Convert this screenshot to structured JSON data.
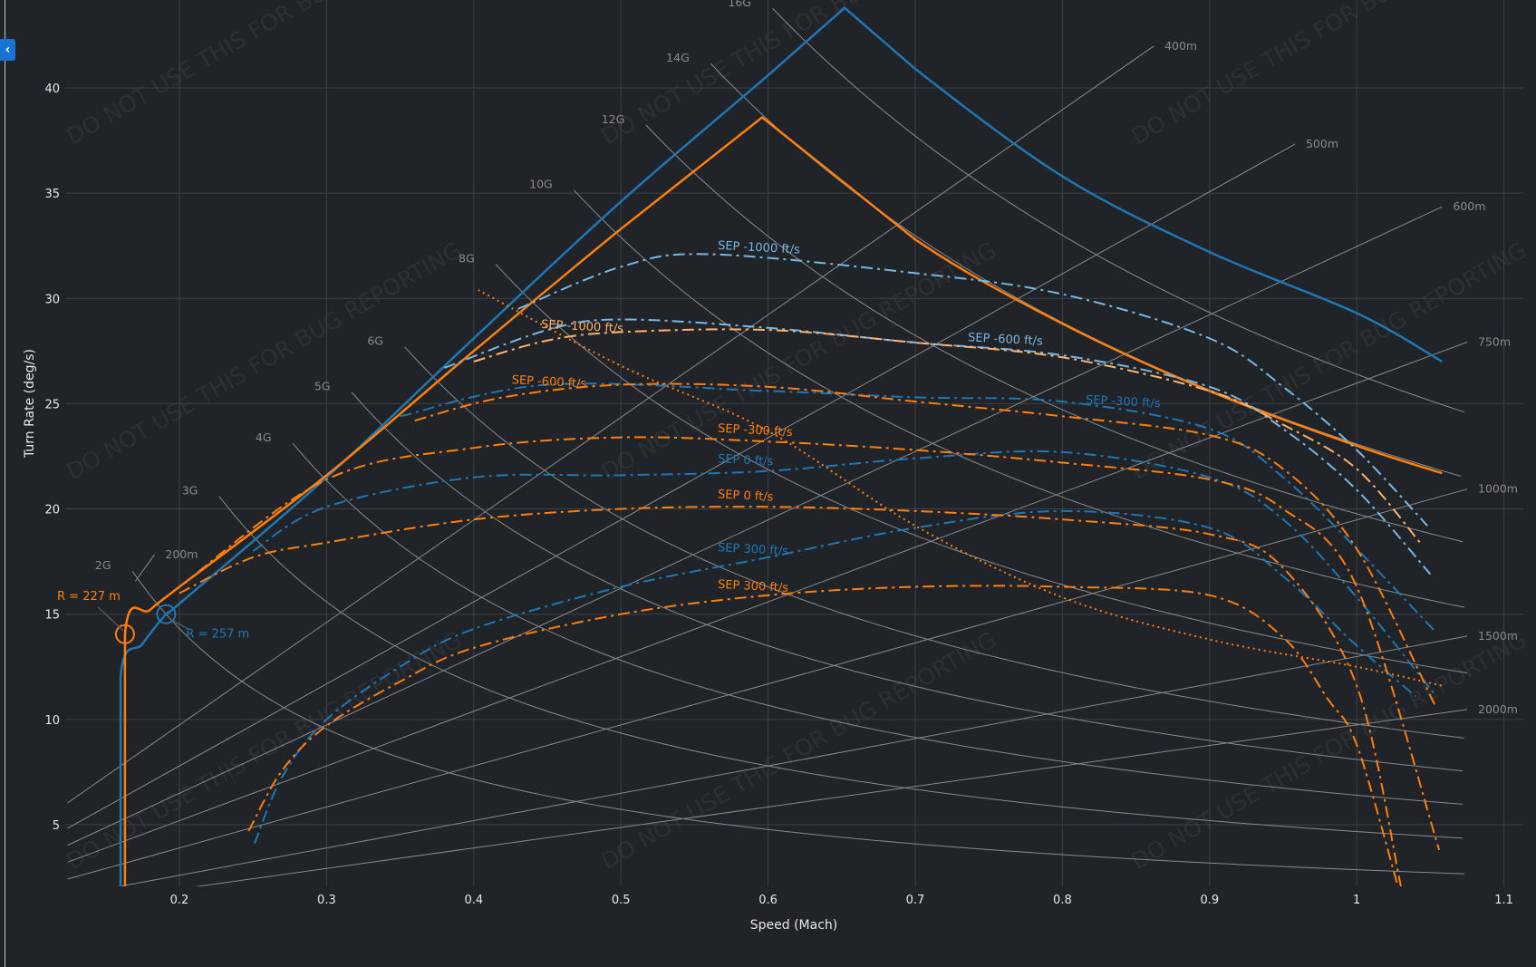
{
  "ui": {
    "collapse_button_icon": "chevron-left-icon",
    "collapse_button_glyph": "‹"
  },
  "watermark": "DO NOT USE THIS FOR BUG REPORTING",
  "colors": {
    "background": "#202328",
    "blue": "#1f77b4",
    "orange": "#ff7f0e",
    "light_blue": "#7ab6e0",
    "light_orange": "#ffb26b",
    "grid": "#3c3f44",
    "reference": "#8a8a8a"
  },
  "chart_data": {
    "type": "line",
    "xlabel": "Speed (Mach)",
    "ylabel": "Turn Rate (deg/s)",
    "xlim": [
      0.122,
      1.113
    ],
    "ylim": [
      2.07,
      44.2
    ],
    "grid": true,
    "x_ticks": [
      "0.2",
      "0.3",
      "0.4",
      "0.5",
      "0.6",
      "0.7",
      "0.8",
      "0.9",
      "1",
      "1.1"
    ],
    "y_ticks": [
      "5",
      "10",
      "15",
      "20",
      "25",
      "30",
      "35",
      "40"
    ],
    "g_lines": [
      {
        "label": "2G",
        "n": 2
      },
      {
        "label": "3G",
        "n": 3
      },
      {
        "label": "4G",
        "n": 4
      },
      {
        "label": "5G",
        "n": 5
      },
      {
        "label": "6G",
        "n": 6
      },
      {
        "label": "8G",
        "n": 8
      },
      {
        "label": "10G",
        "n": 10
      },
      {
        "label": "12G",
        "n": 12
      },
      {
        "label": "14G",
        "n": 14
      },
      {
        "label": "16G",
        "n": 16
      }
    ],
    "radius_lines": [
      {
        "label": "200m",
        "r": 200
      },
      {
        "label": "400m",
        "r": 400
      },
      {
        "label": "500m",
        "r": 500
      },
      {
        "label": "600m",
        "r": 600
      },
      {
        "label": "750m",
        "r": 750
      },
      {
        "label": "1000m",
        "r": 1000
      },
      {
        "label": "1500m",
        "r": 1500
      },
      {
        "label": "2000m",
        "r": 2000
      }
    ],
    "series": [
      {
        "id": "blue-envelope",
        "color": "blue",
        "style": "solid",
        "x": [
          0.16,
          0.16,
          0.175,
          0.191,
          0.2,
          0.3,
          0.4,
          0.5,
          0.6,
          0.652,
          0.7,
          0.8,
          0.9,
          1.0,
          1.058
        ],
        "y": [
          2.07,
          12.0,
          13.6,
          15.0,
          15.5,
          21.5,
          28.1,
          34.6,
          40.6,
          43.8,
          40.9,
          35.8,
          32.2,
          29.3,
          27.0
        ]
      },
      {
        "id": "orange-envelope",
        "color": "orange",
        "style": "solid",
        "x": [
          0.163,
          0.163,
          0.18,
          0.2,
          0.3,
          0.4,
          0.5,
          0.596,
          0.7,
          0.8,
          0.9,
          1.0,
          1.058
        ],
        "y": [
          2.07,
          14.05,
          15.2,
          16.3,
          21.6,
          27.5,
          33.3,
          38.6,
          32.8,
          28.8,
          25.6,
          23.0,
          21.7
        ]
      },
      {
        "id": "orange-dotted",
        "color": "orange",
        "style": "dotted",
        "x": [
          0.403,
          0.5,
          0.6,
          0.7,
          0.8,
          0.9,
          1.0,
          1.058
        ],
        "y": [
          30.4,
          26.8,
          23.7,
          19.2,
          15.8,
          13.8,
          12.5,
          11.6
        ]
      },
      {
        "id": "blue-sep-m1000",
        "name": "SEP -1000 ft/s",
        "color": "light_blue",
        "style": "dashdot",
        "x": [
          0.43,
          0.5,
          0.56,
          0.7,
          0.8,
          0.9,
          0.95,
          1.0,
          1.048
        ],
        "y": [
          29.5,
          31.5,
          32.1,
          31.2,
          30.2,
          28.1,
          25.8,
          22.8,
          19.2
        ],
        "label_at": 0.59
      },
      {
        "id": "blue-sep-m600",
        "name": "SEP -600 ft/s",
        "color": "light_blue",
        "style": "dashdot",
        "x": [
          0.38,
          0.45,
          0.5,
          0.6,
          0.7,
          0.8,
          0.9,
          0.95,
          1.0,
          1.05
        ],
        "y": [
          26.7,
          28.5,
          29.0,
          28.6,
          27.9,
          27.3,
          25.8,
          23.8,
          20.9,
          16.9
        ],
        "label_at": 0.6
      },
      {
        "id": "blue-sep-m300",
        "name": "SEP -300 ft/s",
        "color": "blue",
        "style": "dashdot",
        "x": [
          0.35,
          0.45,
          0.6,
          0.7,
          0.8,
          0.9,
          0.95,
          1.0,
          1.053
        ],
        "y": [
          24.4,
          25.9,
          25.6,
          25.3,
          25.1,
          23.8,
          21.5,
          18.1,
          14.2
        ],
        "label_at": 0.6
      },
      {
        "id": "blue-sep-0",
        "name": "SEP 0 ft/s",
        "color": "blue",
        "style": "dashdot",
        "x": [
          0.25,
          0.3,
          0.4,
          0.5,
          0.6,
          0.7,
          0.8,
          0.9,
          0.95,
          1.0,
          1.054
        ],
        "y": [
          18.0,
          20.1,
          21.5,
          21.6,
          21.8,
          22.4,
          22.7,
          21.5,
          19.5,
          15.8,
          11.1
        ],
        "label_at": 0.59
      },
      {
        "id": "blue-sep-300",
        "name": "SEP 300 ft/s",
        "color": "blue",
        "style": "dashdot",
        "x": [
          0.251,
          0.27,
          0.3,
          0.35,
          0.4,
          0.5,
          0.6,
          0.7,
          0.8,
          0.9,
          0.95,
          1.0,
          1.04
        ],
        "y": [
          4.1,
          7.3,
          10.0,
          12.5,
          14.3,
          16.3,
          17.7,
          19.1,
          19.9,
          19.1,
          16.8,
          13.5,
          11.1
        ],
        "label_at": 0.59
      },
      {
        "id": "orange-sep-m1000",
        "name": "SEP -1000 ft/s",
        "color": "light_orange",
        "style": "dashdot",
        "x": [
          0.4,
          0.45,
          0.5,
          0.6,
          0.7,
          0.8,
          0.9,
          0.95,
          1.0,
          1.043
        ],
        "y": [
          27.0,
          28.0,
          28.4,
          28.5,
          27.9,
          27.2,
          25.6,
          24.0,
          21.9,
          18.4
        ],
        "label_at": 0.58
      },
      {
        "id": "orange-sep-m600",
        "name": "SEP -600 ft/s",
        "color": "orange",
        "style": "dashdot",
        "x": [
          0.36,
          0.42,
          0.5,
          0.6,
          0.7,
          0.8,
          0.9,
          0.95,
          1.0,
          1.053
        ],
        "y": [
          24.2,
          25.3,
          25.9,
          25.8,
          25.1,
          24.4,
          23.5,
          21.9,
          18.1,
          10.7
        ],
        "label_at": 0.59
      },
      {
        "id": "orange-sep-m300",
        "name": "SEP -300 ft/s",
        "color": "orange",
        "style": "dashdot",
        "x": [
          0.2,
          0.3,
          0.4,
          0.5,
          0.6,
          0.7,
          0.8,
          0.9,
          0.95,
          1.0,
          1.056
        ],
        "y": [
          16.3,
          21.4,
          22.9,
          23.4,
          23.2,
          22.8,
          22.2,
          21.4,
          20.0,
          16.3,
          3.8
        ],
        "label_at": 0.59
      },
      {
        "id": "orange-sep-0",
        "name": "SEP 0 ft/s",
        "color": "orange",
        "style": "dashdot",
        "x": [
          0.2,
          0.25,
          0.3,
          0.4,
          0.5,
          0.6,
          0.7,
          0.8,
          0.9,
          0.95,
          1.0,
          1.03
        ],
        "y": [
          16.0,
          17.7,
          18.4,
          19.5,
          20.0,
          20.1,
          19.9,
          19.5,
          18.8,
          17.2,
          11.6,
          2.07
        ],
        "label_at": 0.59
      },
      {
        "id": "orange-sep-300",
        "name": "SEP 300 ft/s",
        "color": "orange",
        "style": "dashdot",
        "x": [
          0.247,
          0.27,
          0.3,
          0.35,
          0.4,
          0.5,
          0.6,
          0.7,
          0.8,
          0.9,
          0.95,
          0.98,
          1.0,
          1.028
        ],
        "y": [
          4.7,
          7.6,
          9.7,
          11.8,
          13.4,
          15.0,
          15.9,
          16.3,
          16.3,
          15.9,
          13.9,
          11.0,
          8.8,
          2.07
        ],
        "label_at": 0.59
      }
    ],
    "annotations": [
      {
        "text": "R = 227 m",
        "color": "orange",
        "x": 0.163,
        "y": 14.05
      },
      {
        "text": "R = 257 m",
        "color": "blue",
        "x": 0.191,
        "y": 15.0
      }
    ]
  }
}
